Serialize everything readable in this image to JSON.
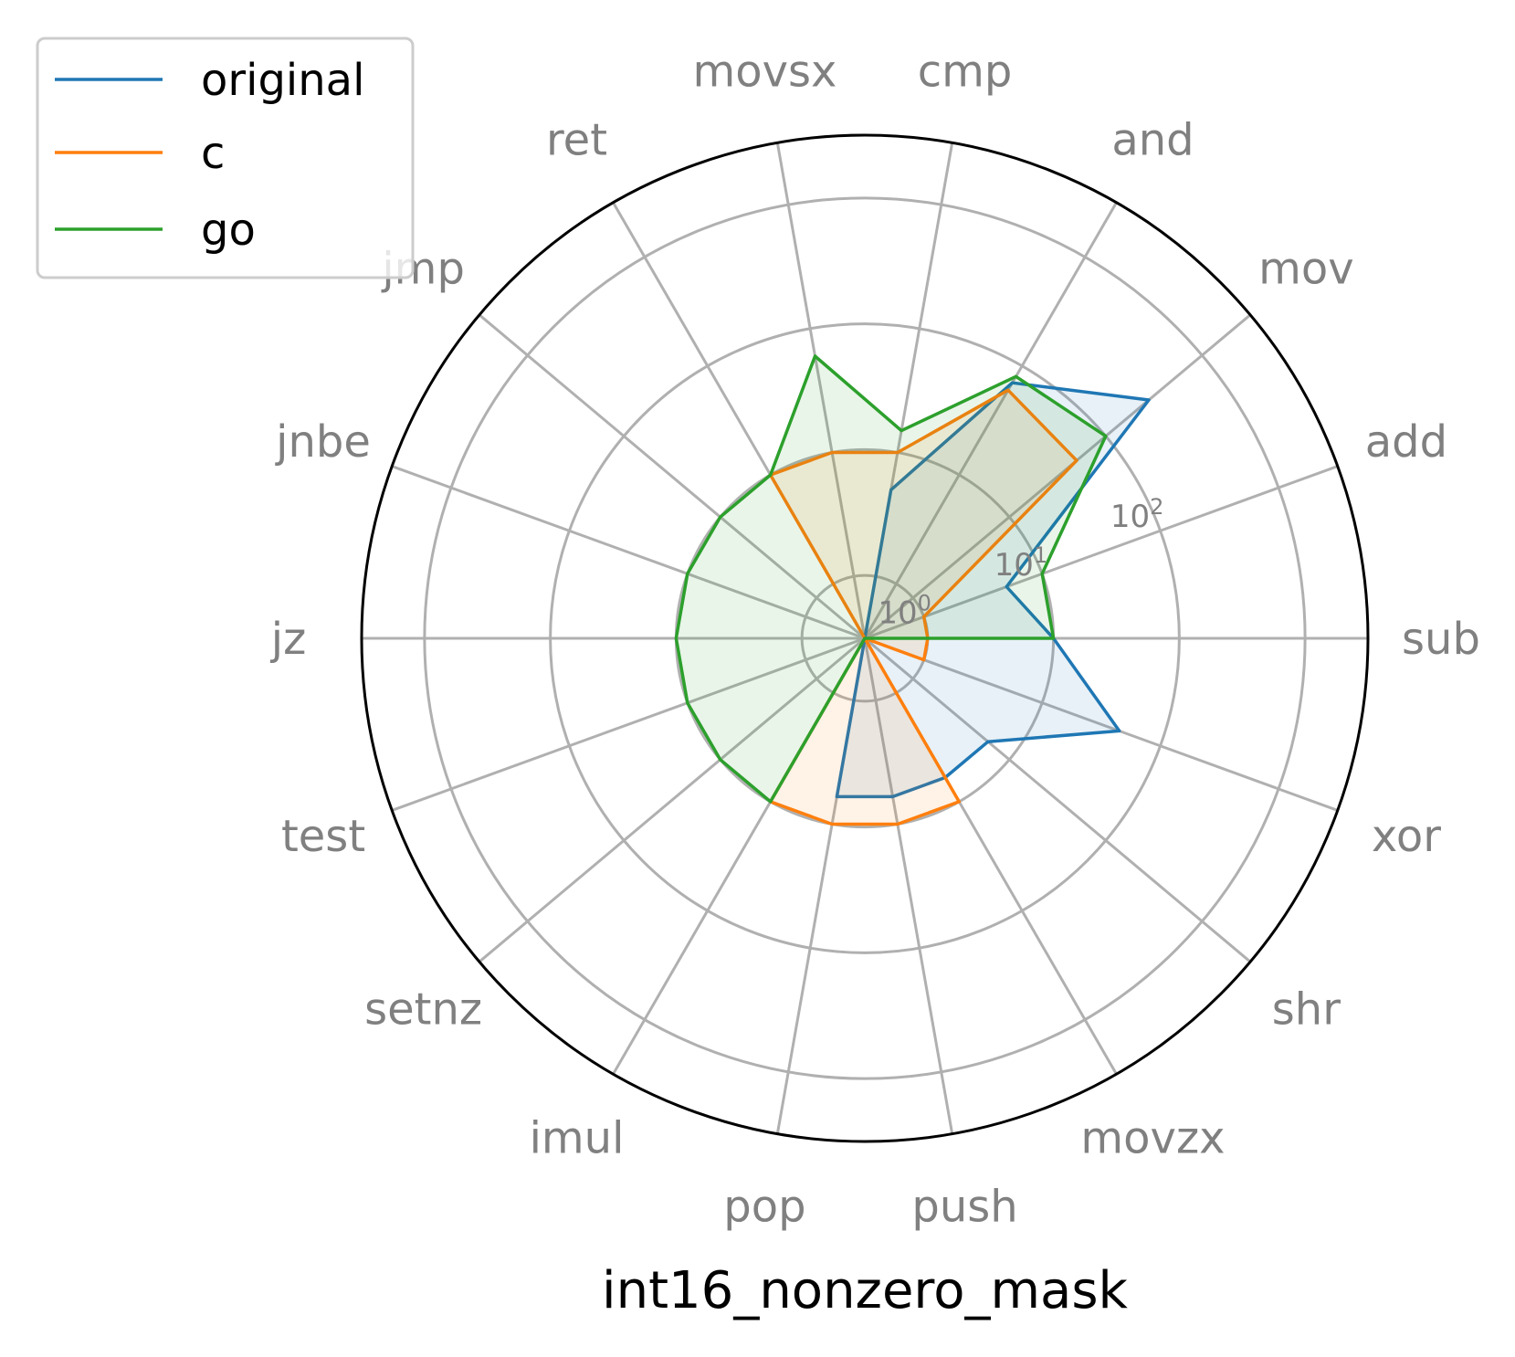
{
  "chart_data": {
    "type": "radar",
    "title": "int16_nonzero_mask",
    "scale": "log",
    "grid": true,
    "legend_position": "upper-left",
    "categories": [
      "sub",
      "add",
      "mov",
      "and",
      "cmp",
      "movsx",
      "ret",
      "jmp",
      "jnbe",
      "jz",
      "test",
      "setnz",
      "imul",
      "pop",
      "push",
      "movzx",
      "shr",
      "xor"
    ],
    "ring_labels": [
      {
        "base": "10",
        "exp": "0"
      },
      {
        "base": "10",
        "exp": "1"
      },
      {
        "base": "10",
        "exp": "2"
      }
    ],
    "r_range_log10": [
      -1.5,
      2.5
    ],
    "series": [
      {
        "name": "original",
        "color": "#1f77b4",
        "values": [
          1,
          0.5,
          28,
          7,
          0.5,
          0.03,
          0.03,
          0.03,
          0.03,
          0.03,
          0.03,
          0.03,
          0.03,
          0.6,
          0.6,
          0.6,
          0.6,
          4.5
        ]
      },
      {
        "name": "c",
        "color": "#ff7f0e",
        "values": [
          0.1,
          0.1,
          5,
          6,
          1,
          1,
          1,
          0.03,
          0.03,
          0.03,
          0.03,
          0.03,
          1,
          1,
          1,
          1,
          0.03,
          0.1
        ]
      },
      {
        "name": "go",
        "color": "#2ca02c",
        "values": [
          1,
          1,
          10,
          8,
          1.5,
          6,
          1,
          1,
          1,
          1,
          1,
          1,
          1,
          0.03,
          0.03,
          0.03,
          0.03,
          0.03
        ]
      }
    ]
  }
}
